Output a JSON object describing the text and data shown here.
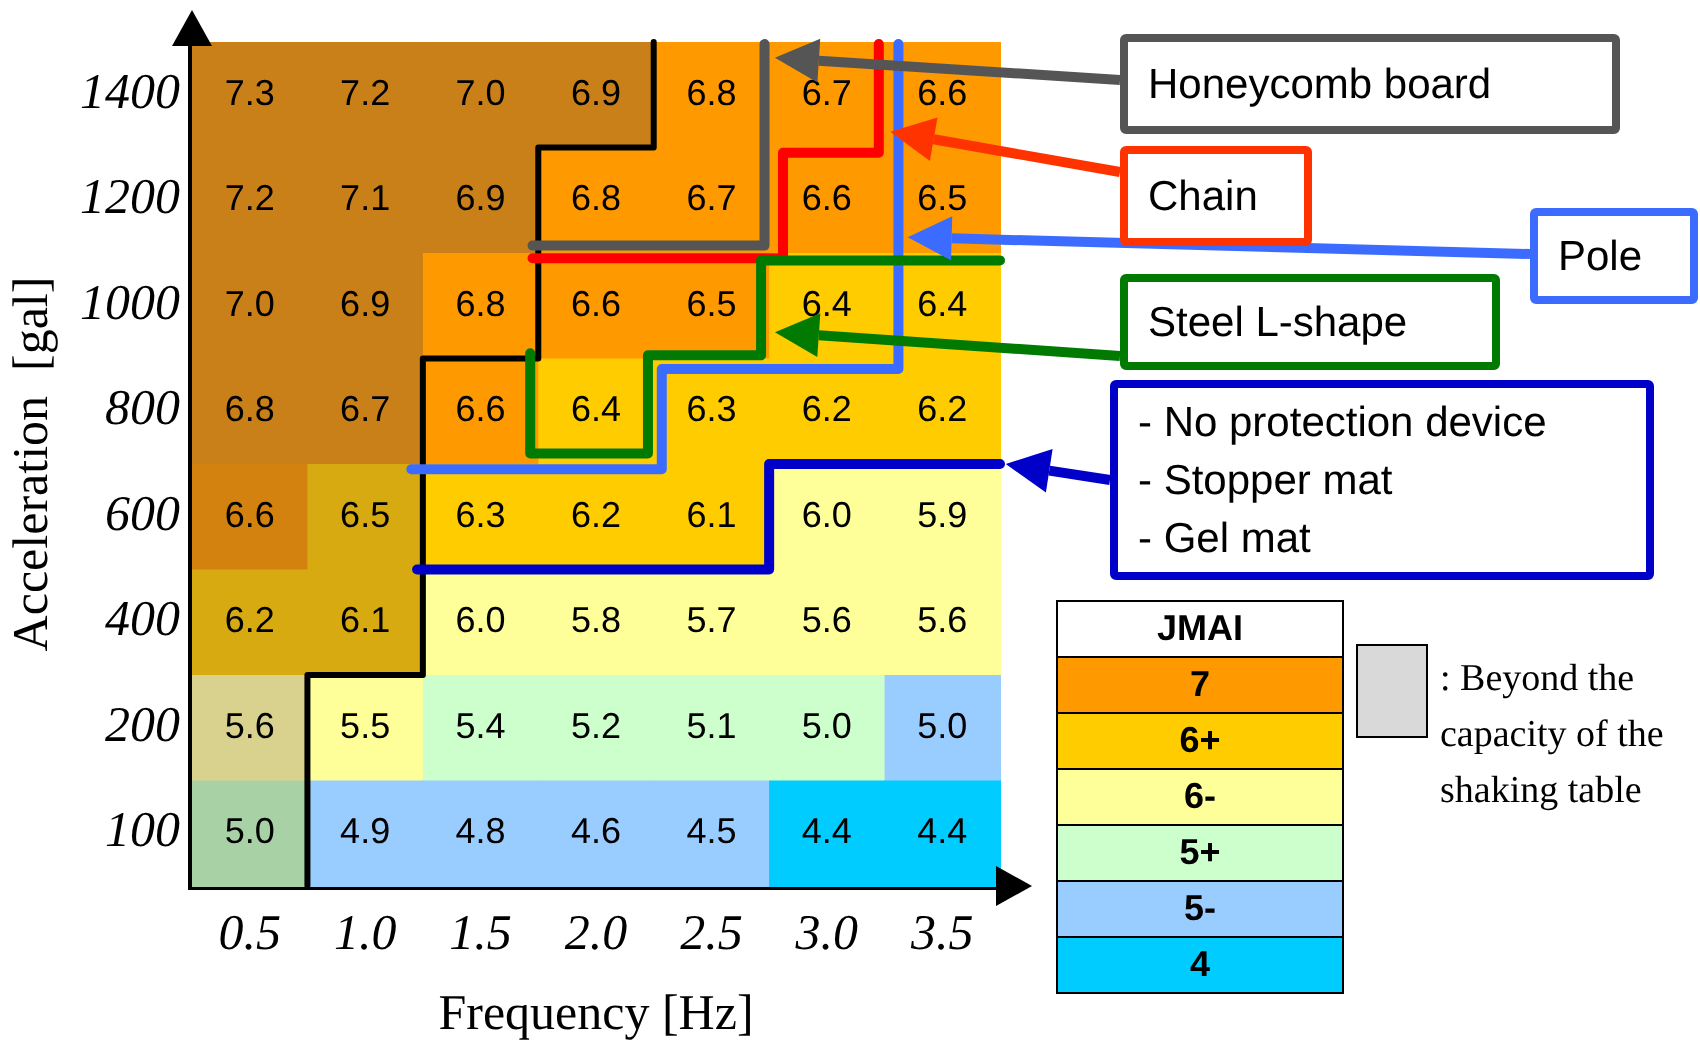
{
  "chart_data": [
    {
      "type": "heatmap",
      "xlabel": "Frequency [Hz]",
      "ylabel": "Acceleration  [gal]",
      "categories": [
        "0.5",
        "1.0",
        "1.5",
        "2.0",
        "2.5",
        "3.0",
        "3.5"
      ],
      "y_categories": [
        "1400",
        "1200",
        "1000",
        "800",
        "600",
        "400",
        "200",
        "100"
      ],
      "cells": [
        [
          7.3,
          7.2,
          7.0,
          6.9,
          6.8,
          6.7,
          6.6
        ],
        [
          7.2,
          7.1,
          6.9,
          6.8,
          6.7,
          6.6,
          6.5
        ],
        [
          7.0,
          6.9,
          6.8,
          6.6,
          6.5,
          6.4,
          6.4
        ],
        [
          6.8,
          6.7,
          6.6,
          6.4,
          6.3,
          6.2,
          6.2
        ],
        [
          6.6,
          6.5,
          6.3,
          6.2,
          6.1,
          6.0,
          5.9
        ],
        [
          6.2,
          6.1,
          6.0,
          5.8,
          5.7,
          5.6,
          5.6
        ],
        [
          5.6,
          5.5,
          5.4,
          5.2,
          5.1,
          5.0,
          5.0
        ],
        [
          5.0,
          4.9,
          4.8,
          4.6,
          4.5,
          4.4,
          4.4
        ]
      ],
      "cell_labels": [
        [
          "7.3",
          "7.2",
          "7.0",
          "6.9",
          "6.8",
          "6.7",
          "6.6"
        ],
        [
          "7.2",
          "7.1",
          "6.9",
          "6.8",
          "6.7",
          "6.6",
          "6.5"
        ],
        [
          "7.0",
          "6.9",
          "6.8",
          "6.6",
          "6.5",
          "6.4",
          "6.4"
        ],
        [
          "6.8",
          "6.7",
          "6.6",
          "6.4",
          "6.3",
          "6.2",
          "6.2"
        ],
        [
          "6.6",
          "6.5",
          "6.3",
          "6.2",
          "6.1",
          "6.0",
          "5.9"
        ],
        [
          "6.2",
          "6.1",
          "6.0",
          "5.8",
          "5.7",
          "5.6",
          "5.6"
        ],
        [
          "5.6",
          "5.5",
          "5.4",
          "5.2",
          "5.1",
          "5.0",
          "5.0"
        ],
        [
          "5.0",
          "4.9",
          "4.8",
          "4.6",
          "4.5",
          "4.4",
          "4.4"
        ]
      ],
      "colors": [
        [
          "#c98018",
          "#c98018",
          "#c98018",
          "#c98018",
          "#ff9900",
          "#ff9900",
          "#ff9900"
        ],
        [
          "#c98018",
          "#c98018",
          "#c98018",
          "#ff9900",
          "#ff9900",
          "#ff9900",
          "#ff9900"
        ],
        [
          "#c98018",
          "#c98018",
          "#ff9900",
          "#ff9900",
          "#ff9900",
          "#ffcc00",
          "#ffcc00"
        ],
        [
          "#c98018",
          "#c98018",
          "#ff9900",
          "#ffcc00",
          "#ffcc00",
          "#ffcc00",
          "#ffcc00"
        ],
        [
          "#d4820f",
          "#d6aa10",
          "#ffcc00",
          "#ffcc00",
          "#ffcc00",
          "#ffff99",
          "#ffff99"
        ],
        [
          "#d6aa10",
          "#d6aa10",
          "#ffff99",
          "#ffff99",
          "#ffff99",
          "#ffff99",
          "#ffff99"
        ],
        [
          "#d9d28e",
          "#ffff99",
          "#ccffcc",
          "#ccffcc",
          "#ccffcc",
          "#ccffcc",
          "#99ccff"
        ],
        [
          "#a9d1a6",
          "#99ccff",
          "#99ccff",
          "#99ccff",
          "#99ccff",
          "#00ccff",
          "#00ccff"
        ]
      ],
      "annotations": [
        "Honeycomb board",
        "Chain",
        "Pole",
        "Steel L-shape",
        "- No protection device\n- Stopper mat\n- Gel mat"
      ]
    },
    {
      "type": "other",
      "title": "JMAI",
      "categories": [
        "7",
        "6+",
        "6-",
        "5+",
        "5-",
        "4",
        ": Beyond the capacity of the shaking table"
      ],
      "colors": [
        "#ff9900",
        "#ffcc00",
        "#ffff99",
        "#ccffcc",
        "#99ccff",
        "#00ccff",
        "#d9d9d9"
      ]
    }
  ]
}
